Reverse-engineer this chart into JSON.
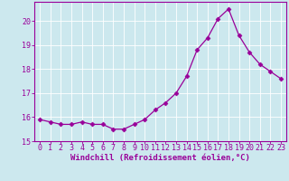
{
  "x": [
    0,
    1,
    2,
    3,
    4,
    5,
    6,
    7,
    8,
    9,
    10,
    11,
    12,
    13,
    14,
    15,
    16,
    17,
    18,
    19,
    20,
    21,
    22,
    23
  ],
  "y": [
    15.9,
    15.8,
    15.7,
    15.7,
    15.8,
    15.7,
    15.7,
    15.5,
    15.5,
    15.7,
    15.9,
    16.3,
    16.6,
    17.0,
    17.7,
    18.8,
    19.3,
    20.1,
    20.5,
    19.4,
    18.7,
    18.2,
    17.9,
    17.6
  ],
  "line_color": "#990099",
  "marker": "D",
  "marker_size": 2.5,
  "bg_color": "#cce8ee",
  "grid_color": "#ffffff",
  "xlabel": "Windchill (Refroidissement éolien,°C)",
  "ylabel": "",
  "title": "",
  "xlim": [
    -0.5,
    23.5
  ],
  "ylim": [
    15.0,
    20.8
  ],
  "yticks": [
    15,
    16,
    17,
    18,
    19,
    20
  ],
  "xticks": [
    0,
    1,
    2,
    3,
    4,
    5,
    6,
    7,
    8,
    9,
    10,
    11,
    12,
    13,
    14,
    15,
    16,
    17,
    18,
    19,
    20,
    21,
    22,
    23
  ],
  "xlabel_color": "#990099",
  "tick_color": "#990099",
  "label_fontsize": 6.5,
  "tick_fontsize": 6.0
}
